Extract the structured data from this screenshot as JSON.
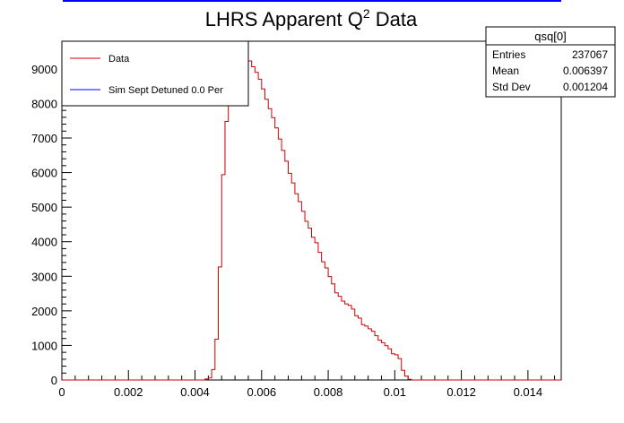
{
  "colors": {
    "data": "#d00000",
    "sim": "#0000ff",
    "axis": "#000000"
  },
  "stats_box": {
    "title": "qsq[0]",
    "rows": [
      {
        "label": "Entries",
        "value": "237067"
      },
      {
        "label": "Mean",
        "value": "0.006397"
      },
      {
        "label": "Std Dev",
        "value": "0.001204"
      }
    ]
  },
  "legend": {
    "entries": [
      {
        "label": "Data",
        "color": "#d00000"
      },
      {
        "label": "Sim Sept Detuned 0.0 Per",
        "color": "#0000ff"
      }
    ]
  },
  "chart_data": {
    "type": "histogram",
    "title": "LHRS Apparent Q",
    "title_superscript": "2",
    "title_suffix": " Data",
    "xlabel": "",
    "ylabel": "",
    "xlim": [
      0,
      0.015
    ],
    "ylim": [
      0,
      9800
    ],
    "x_ticks": [
      0,
      0.002,
      0.004,
      0.006,
      0.008,
      0.01,
      0.012,
      0.014
    ],
    "x_tick_labels": [
      "0",
      "0.002",
      "0.004",
      "0.006",
      "0.008",
      "0.01",
      "0.012",
      "0.014"
    ],
    "y_ticks": [
      0,
      1000,
      2000,
      3000,
      4000,
      5000,
      6000,
      7000,
      8000,
      9000
    ],
    "y_tick_labels": [
      "0",
      "1000",
      "2000",
      "3000",
      "4000",
      "5000",
      "6000",
      "7000",
      "8000",
      "9000"
    ],
    "grid": false,
    "legend_position": "top-left",
    "series": [
      {
        "name": "Data",
        "bin_width": 0.0001,
        "x_start": 0.0,
        "values": [
          0,
          0,
          0,
          0,
          0,
          0,
          0,
          0,
          0,
          0,
          0,
          0,
          0,
          0,
          0,
          0,
          0,
          0,
          0,
          0,
          0,
          0,
          0,
          0,
          0,
          0,
          0,
          0,
          0,
          0,
          0,
          0,
          0,
          0,
          0,
          0,
          0,
          0,
          0,
          0,
          0,
          0,
          0,
          30,
          60,
          300,
          1180,
          3270,
          5940,
          7480,
          8140,
          8600,
          8840,
          9020,
          9120,
          9180,
          9230,
          9060,
          8900,
          8700,
          8420,
          8120,
          7850,
          7590,
          7290,
          6970,
          6640,
          6330,
          5980,
          5700,
          5390,
          5160,
          4880,
          4590,
          4390,
          4130,
          3970,
          3690,
          3420,
          3240,
          2990,
          2780,
          2520,
          2420,
          2280,
          2200,
          2160,
          2050,
          1860,
          1790,
          1600,
          1560,
          1480,
          1410,
          1280,
          1150,
          1080,
          990,
          900,
          760,
          730,
          620,
          280,
          110,
          20,
          0,
          0,
          0,
          0,
          0,
          0,
          0,
          0,
          0,
          0,
          0,
          0,
          0,
          0,
          0,
          0,
          0,
          0,
          0,
          0,
          0,
          0,
          0,
          0,
          0,
          0,
          0,
          0,
          0,
          0,
          0,
          0,
          0,
          0,
          0,
          0,
          0,
          0,
          0,
          0,
          0,
          0,
          0,
          0,
          0
        ]
      },
      {
        "name": "Sim Sept Detuned 0.0 Per",
        "values": []
      }
    ]
  }
}
